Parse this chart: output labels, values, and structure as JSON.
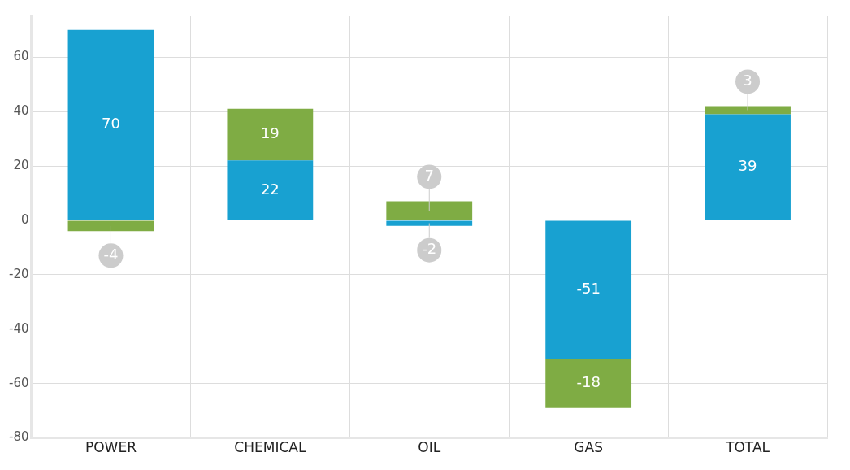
{
  "chart_data": {
    "type": "bar",
    "stacked": true,
    "categories": [
      "POWER",
      "CHEMICAL",
      "OIL",
      "GAS",
      "TOTAL"
    ],
    "series": [
      {
        "color": "#18a1d1",
        "values": [
          70,
          22,
          -2,
          -51,
          39
        ]
      },
      {
        "color": "#7fac44",
        "values": [
          -4,
          19,
          7,
          -18,
          3
        ]
      }
    ],
    "ylim": [
      -80,
      75
    ],
    "yticks": [
      -80,
      -60,
      -40,
      -20,
      0,
      20,
      40,
      60
    ],
    "grid": true,
    "legend": false,
    "data_labels": true
  }
}
